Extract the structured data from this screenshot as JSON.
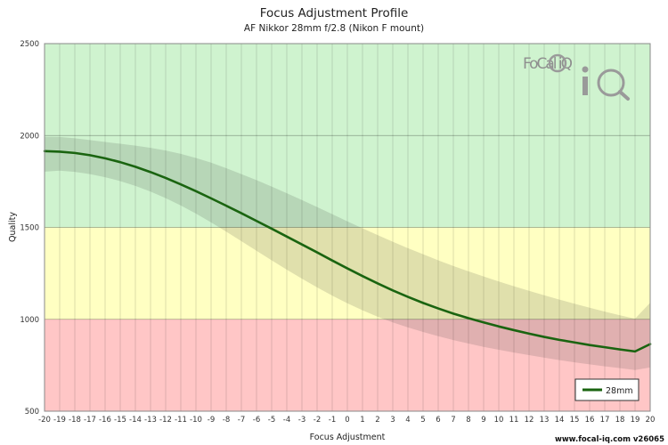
{
  "chart_data": {
    "type": "line",
    "title": "Focus Adjustment Profile",
    "subtitle": "AF Nikkor 28mm f/2.8 (Nikon F mount)",
    "xlabel": "Focus Adjustment",
    "ylabel": "Quality",
    "xlim": [
      -20,
      20
    ],
    "ylim": [
      500,
      2500
    ],
    "x_ticks": [
      -20,
      -19,
      -18,
      -17,
      -16,
      -15,
      -14,
      -13,
      -12,
      -11,
      -10,
      -9,
      -8,
      -7,
      -6,
      -5,
      -4,
      -3,
      -2,
      -1,
      0,
      1,
      2,
      3,
      4,
      5,
      6,
      7,
      8,
      9,
      10,
      11,
      12,
      13,
      14,
      15,
      16,
      17,
      18,
      19,
      20
    ],
    "y_ticks": [
      500,
      1000,
      1500,
      2000,
      2500
    ],
    "grid": true,
    "bands": [
      {
        "from": 500,
        "to": 1000,
        "color": "#ffc6c6"
      },
      {
        "from": 1000,
        "to": 1500,
        "color": "#ffffc2"
      },
      {
        "from": 1500,
        "to": 2500,
        "color": "#cff3cf"
      }
    ],
    "legend_position": "bottom-right",
    "series": [
      {
        "name": "28mm",
        "color": "#1a6410",
        "x": [
          -20,
          -19,
          -18,
          -17,
          -16,
          -15,
          -14,
          -13,
          -12,
          -11,
          -10,
          -9,
          -8,
          -7,
          -6,
          -5,
          -4,
          -3,
          -2,
          -1,
          0,
          1,
          2,
          3,
          4,
          5,
          6,
          7,
          8,
          9,
          10,
          11,
          12,
          13,
          14,
          15,
          16,
          17,
          18,
          19,
          20
        ],
        "y": [
          1915,
          1912,
          1905,
          1893,
          1876,
          1855,
          1830,
          1801,
          1769,
          1734,
          1697,
          1658,
          1618,
          1577,
          1535,
          1493,
          1450,
          1407,
          1364,
          1320,
          1277,
          1235,
          1195,
          1157,
          1122,
          1089,
          1059,
          1031,
          1006,
          983,
          961,
          941,
          922,
          904,
          888,
          874,
          860,
          848,
          836,
          825,
          865
        ],
        "band_upper": [
          1993,
          1992,
          1985,
          1975,
          1965,
          1955,
          1945,
          1933,
          1918,
          1900,
          1878,
          1852,
          1822,
          1790,
          1757,
          1722,
          1686,
          1649,
          1611,
          1572,
          1533,
          1495,
          1458,
          1422,
          1387,
          1354,
          1321,
          1290,
          1261,
          1233,
          1206,
          1180,
          1155,
          1131,
          1107,
          1085,
          1063,
          1042,
          1022,
          1003,
          1090
        ],
        "band_lower": [
          1803,
          1809,
          1802,
          1790,
          1773,
          1752,
          1726,
          1695,
          1659,
          1619,
          1575,
          1527,
          1477,
          1425,
          1373,
          1321,
          1270,
          1221,
          1174,
          1129,
          1087,
          1049,
          1014,
          983,
          956,
          931,
          908,
          887,
          868,
          850,
          834,
          819,
          805,
          791,
          778,
          766,
          755,
          744,
          734,
          724,
          738
        ]
      }
    ]
  },
  "logo": {
    "text": "FoCal iQ"
  },
  "footer": {
    "text": "www.focal-iq.com  v26065"
  }
}
